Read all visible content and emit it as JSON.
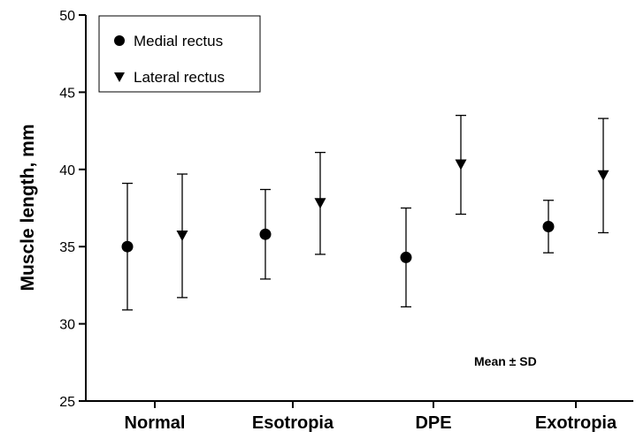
{
  "chart_data": {
    "type": "scatter",
    "categories": [
      "Normal",
      "Esotropia",
      "DPE",
      "Exotropia"
    ],
    "ylabel": "Muscle length, mm",
    "ylim": [
      25,
      50
    ],
    "yticks": [
      25,
      30,
      35,
      40,
      45,
      50
    ],
    "grid": false,
    "legend": {
      "placement": "top-left",
      "entries": [
        "Medial rectus",
        "Lateral rectus"
      ]
    },
    "annotation": "Mean ± SD",
    "series": [
      {
        "name": "Medial rectus",
        "marker": "circle",
        "mean": [
          35.0,
          35.8,
          34.3,
          36.3
        ],
        "sd": [
          4.1,
          2.9,
          3.2,
          1.7
        ]
      },
      {
        "name": "Lateral rectus",
        "marker": "triangle-down",
        "mean": [
          35.7,
          37.8,
          40.3,
          39.6
        ],
        "sd": [
          4.0,
          3.3,
          3.2,
          3.7
        ]
      }
    ],
    "colors": {
      "marker": "#000000",
      "axis": "#000000",
      "errorbar": "#000000"
    }
  }
}
